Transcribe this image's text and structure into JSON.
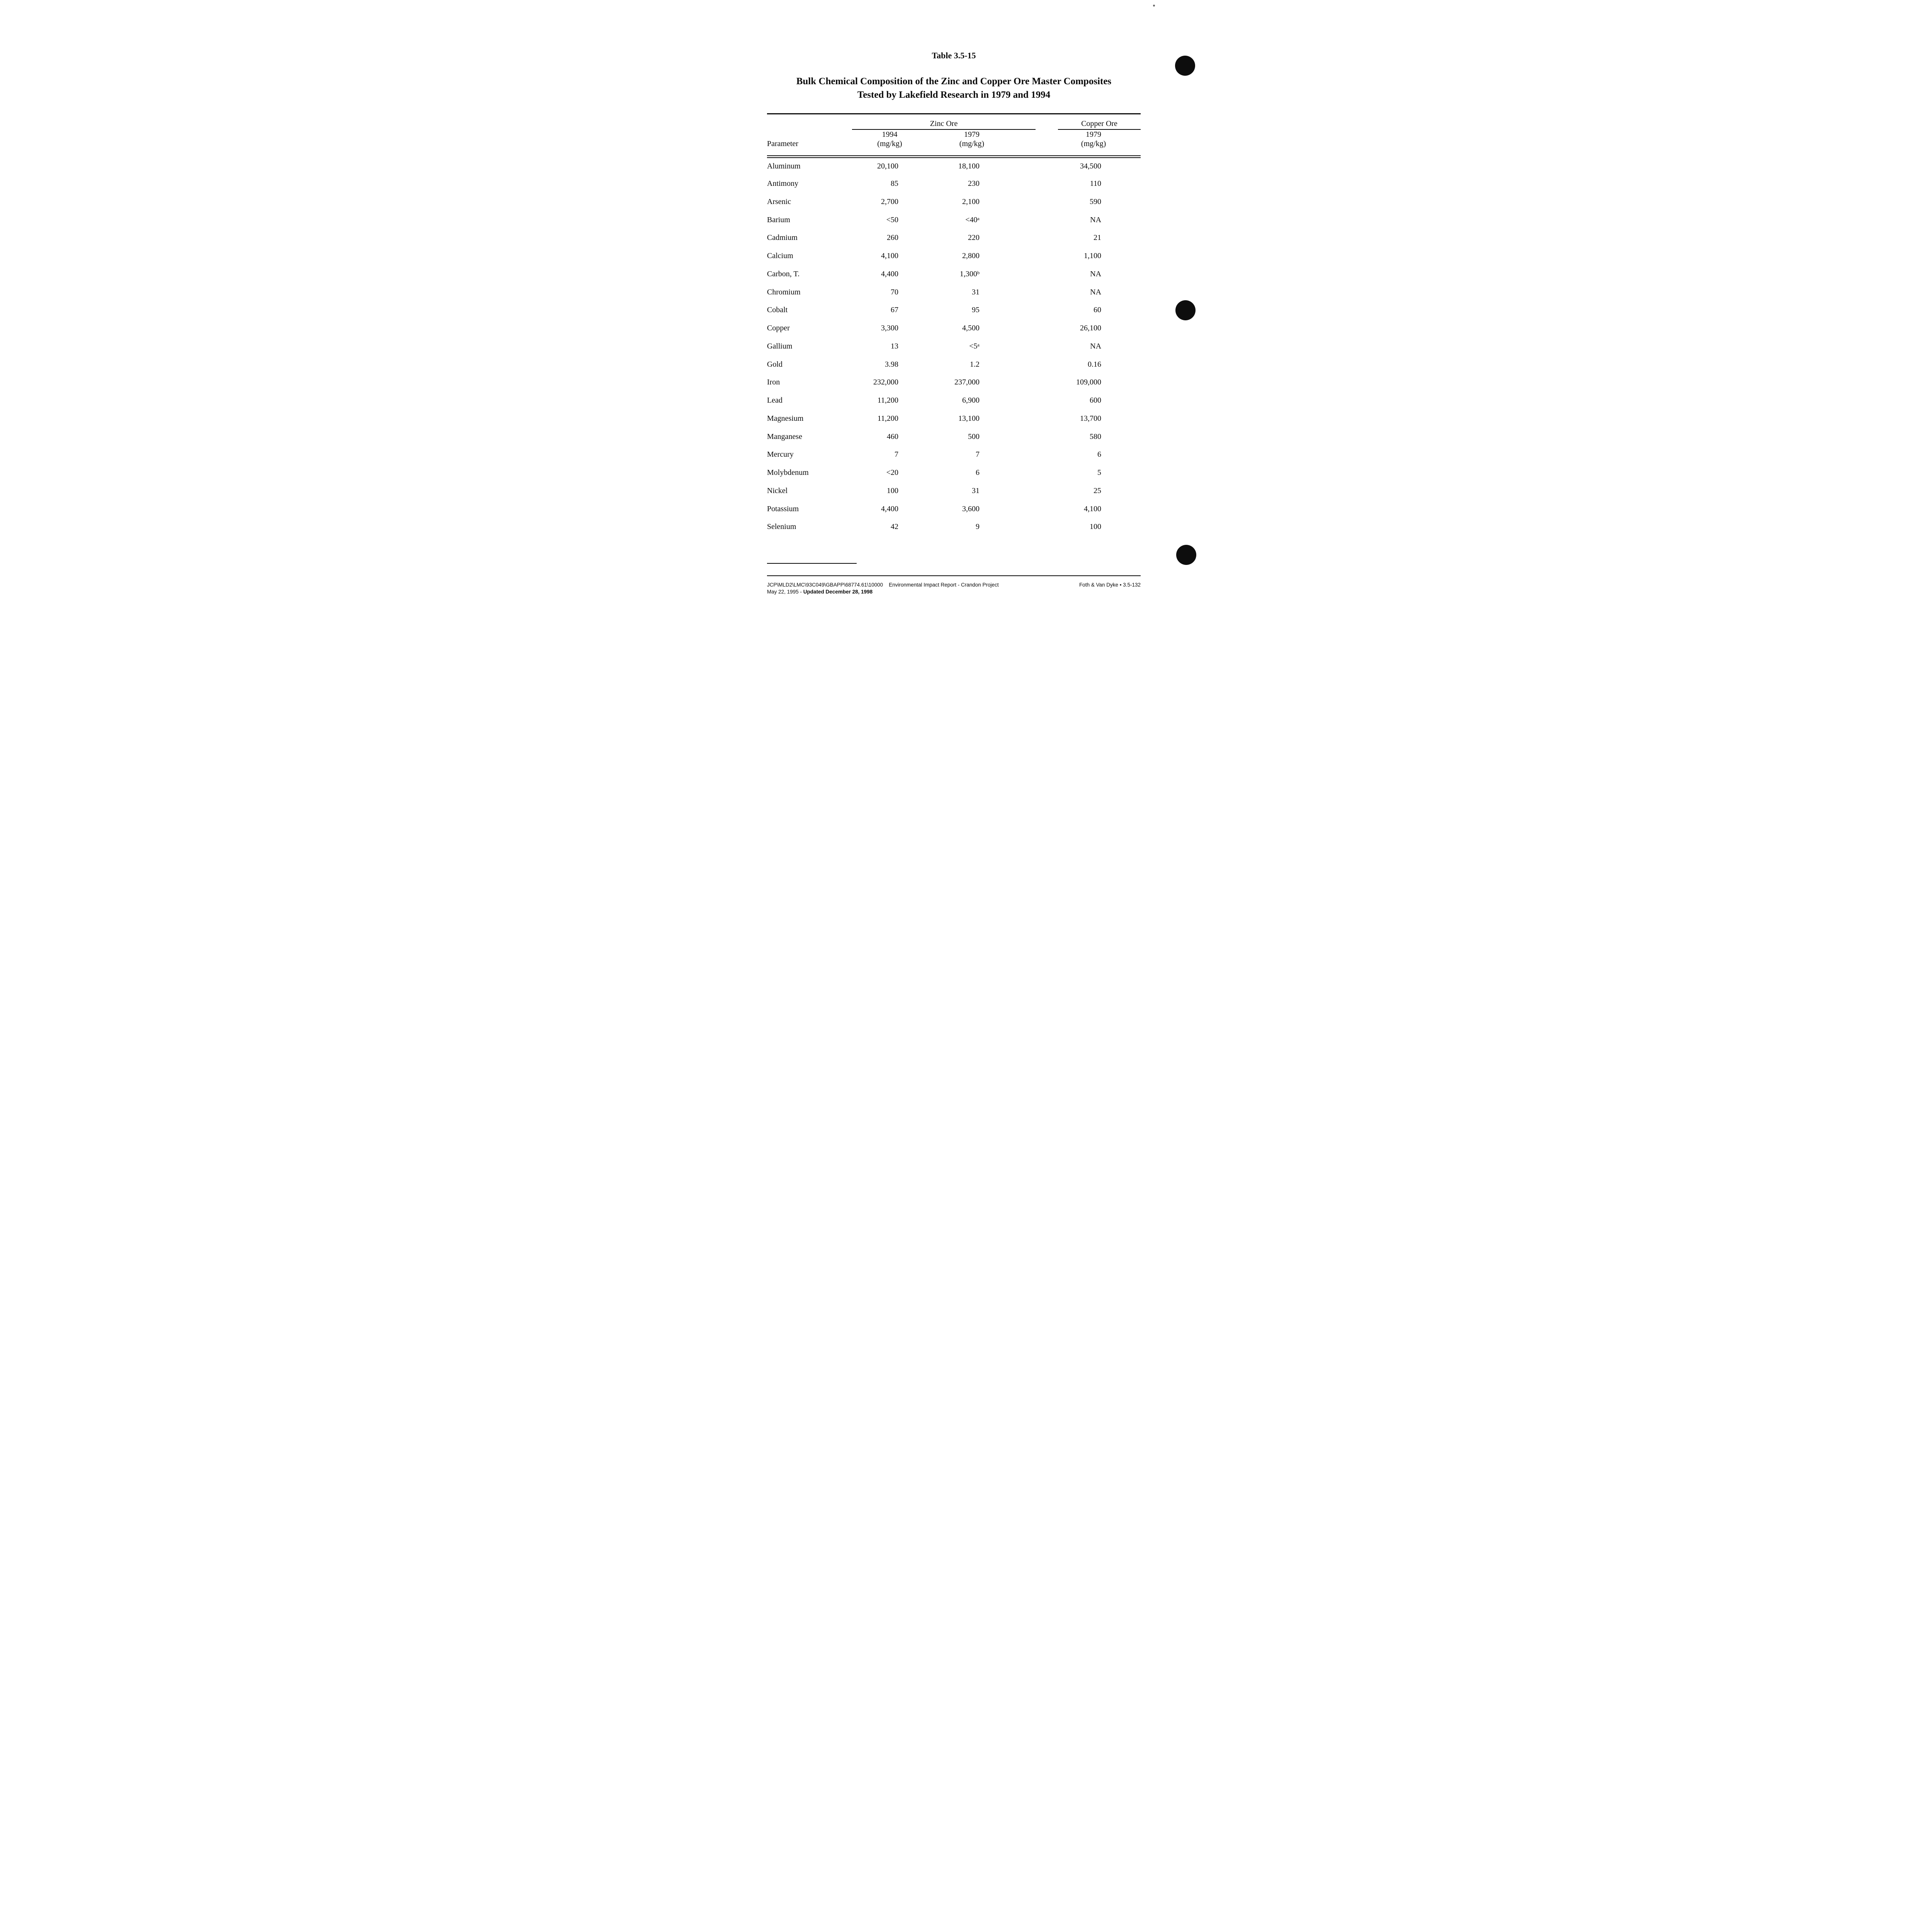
{
  "colors": {
    "paper": "#ffffff",
    "ink": "#0a0a0a",
    "hole_punch": "#0d0d0d"
  },
  "document": {
    "table_number": "Table 3.5-15",
    "title_line1": "Bulk Chemical Composition of the Zinc and Copper Ore Master Composites",
    "title_line2": "Tested by Lakefield Research in 1979 and 1994"
  },
  "table": {
    "group_headers": {
      "zinc": "Zinc Ore",
      "copper": "Copper Ore"
    },
    "columns": {
      "parameter": "Parameter",
      "zinc_1994_year": "1994",
      "zinc_1994_unit": "(mg/kg)",
      "zinc_1979_year": "1979",
      "zinc_1979_unit": "(mg/kg)",
      "copper_1979_year": "1979",
      "copper_1979_unit": "(mg/kg)"
    },
    "rows": [
      [
        "Aluminum",
        "20,100",
        "18,100",
        "34,500"
      ],
      [
        "Antimony",
        "85",
        "230",
        "110"
      ],
      [
        "Arsenic",
        "2,700",
        "2,100",
        "590"
      ],
      [
        "Barium",
        "<50",
        "<40ᵃ",
        "NA"
      ],
      [
        "Cadmium",
        "260",
        "220",
        "21"
      ],
      [
        "Calcium",
        "4,100",
        "2,800",
        "1,100"
      ],
      [
        "Carbon, T.",
        "4,400",
        "1,300ᵇ",
        "NA"
      ],
      [
        "Chromium",
        "70",
        "31",
        "NA"
      ],
      [
        "Cobalt",
        "67",
        "95",
        "60"
      ],
      [
        "Copper",
        "3,300",
        "4,500",
        "26,100"
      ],
      [
        "Gallium",
        "13",
        "<5ᵃ",
        "NA"
      ],
      [
        "Gold",
        "3.98",
        "1.2",
        "0.16"
      ],
      [
        "Iron",
        "232,000",
        "237,000",
        "109,000"
      ],
      [
        "Lead",
        "11,200",
        "6,900",
        "600"
      ],
      [
        "Magnesium",
        "11,200",
        "13,100",
        "13,700"
      ],
      [
        "Manganese",
        "460",
        "500",
        "580"
      ],
      [
        "Mercury",
        "7",
        "7",
        "6"
      ],
      [
        "Molybdenum",
        "<20",
        "6",
        "5"
      ],
      [
        "Nickel",
        "100",
        "31",
        "25"
      ],
      [
        "Potassium",
        "4,400",
        "3,600",
        "4,100"
      ],
      [
        "Selenium",
        "42",
        "9",
        "100"
      ]
    ]
  },
  "footer": {
    "file_path": "JCP\\MLD2\\LMC\\93C049\\GBAPP\\68774.61\\10000",
    "report_name": "Environmental Impact Report - Crandon Project",
    "date_line_normal": "May 22, 1995 - ",
    "date_line_bold": "Updated December 28, 1998",
    "page_reference": "Foth & Van Dyke • 3.5-132"
  }
}
